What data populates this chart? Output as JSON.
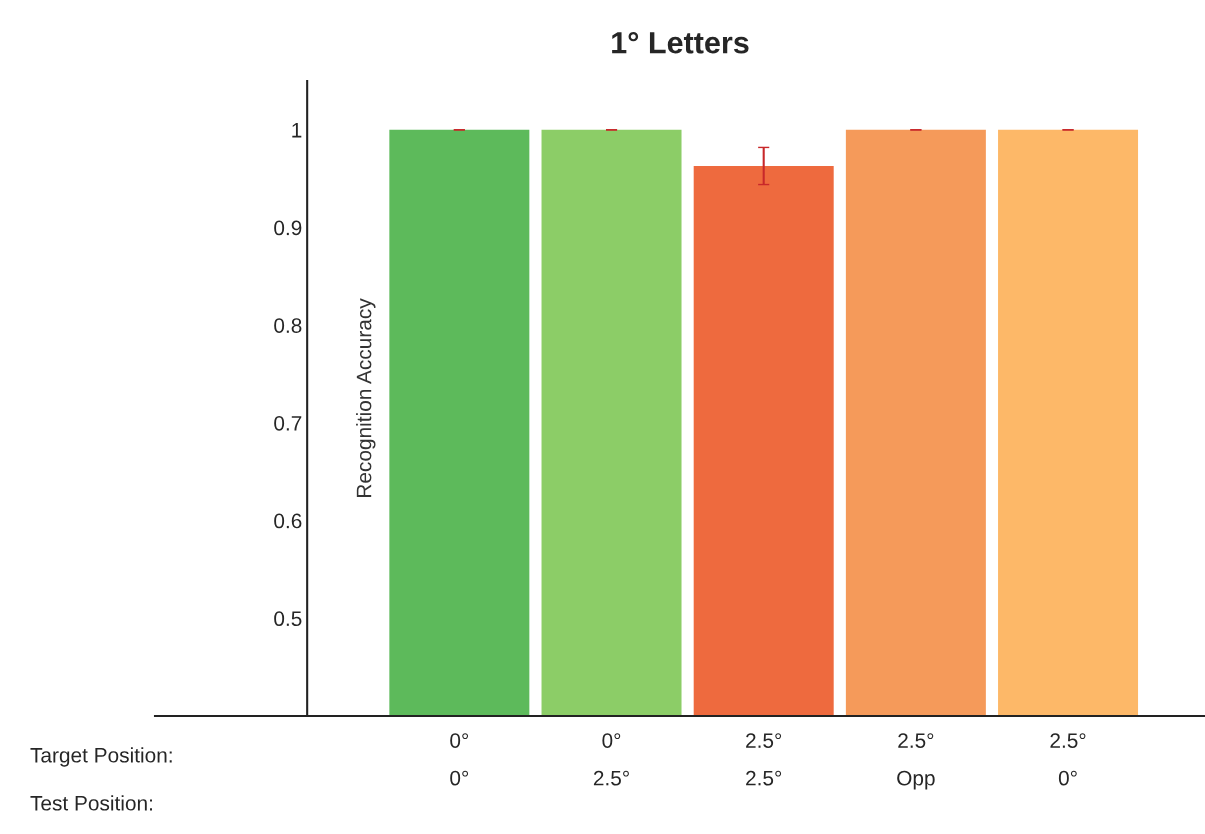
{
  "chart_data": {
    "type": "bar",
    "title": "1° Letters",
    "ylabel": "Recognition Accuracy",
    "categories": [
      "0°\n0°",
      "0°\n2.5°",
      "2.5°\n2.5°",
      "2.5°\nOpp",
      "2.5°\n0°"
    ],
    "values": [
      1,
      1,
      0.963,
      1,
      1
    ],
    "errors": [
      0,
      0,
      0.019,
      0,
      0
    ],
    "colors": [
      "#5dba5b",
      "#8ccd67",
      "#ee6a3e",
      "#f59a5a",
      "#fdb868"
    ],
    "ylim": [
      0.4,
      1.05
    ],
    "yticks": [
      0.5,
      0.6,
      0.7,
      0.8,
      0.9,
      1
    ],
    "annotations": [
      "Target Position:",
      "Test Position:"
    ],
    "grid": false,
    "legend": false
  }
}
